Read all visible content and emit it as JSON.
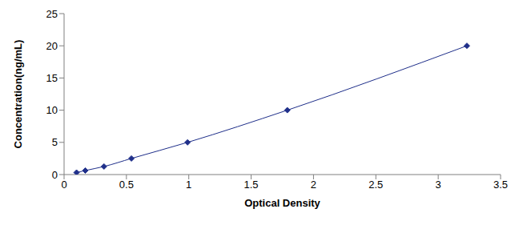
{
  "chart_data": {
    "type": "line",
    "x_label": "Optical Density",
    "y_label": "Concentration(ng/mL)",
    "x": [
      0.1,
      0.17,
      0.32,
      0.54,
      0.99,
      1.79,
      3.23
    ],
    "values": [
      0.3125,
      0.625,
      1.25,
      2.5,
      5,
      10,
      20
    ],
    "color": "#1f2f8a",
    "marker": "diamond",
    "line_style": "solid",
    "xlim": [
      0,
      3.5
    ],
    "xticks": [
      0,
      0.5,
      1,
      1.5,
      2,
      2.5,
      3,
      3.5
    ],
    "ylim": [
      0,
      25
    ],
    "yticks": [
      0,
      5,
      10,
      15,
      20,
      25
    ],
    "grid": false
  }
}
